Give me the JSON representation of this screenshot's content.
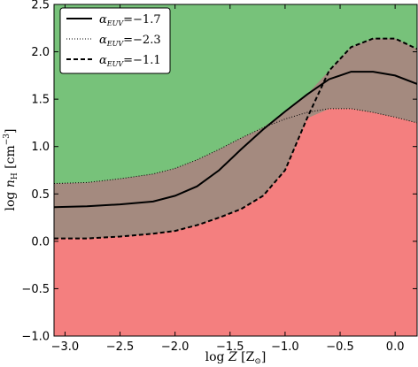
{
  "chart_data": {
    "type": "area",
    "xlabel": "log Z [Z☉]",
    "ylabel": "log nₕ [cm⁻³]",
    "xlim": [
      -3.1,
      0.2
    ],
    "ylim": [
      -1.0,
      2.5
    ],
    "xticks": [
      "−3.0",
      "−2.5",
      "−2.0",
      "−1.5",
      "−1.0",
      "−0.5",
      "0.0"
    ],
    "xtick_values": [
      -3.0,
      -2.5,
      -2.0,
      -1.5,
      -1.0,
      -0.5,
      0.0
    ],
    "yticks": [
      "−1.0",
      "−0.5",
      "0.0",
      "0.5",
      "1.0",
      "1.5",
      "2.0",
      "2.5"
    ],
    "ytick_values": [
      -1.0,
      -0.5,
      0.0,
      0.5,
      1.0,
      1.5,
      2.0,
      2.5
    ],
    "grid": false,
    "legend_position": "top-left",
    "colors": {
      "upper_region": "#77c27a",
      "lower_region": "#f47f7f",
      "overlap_region": "#a48a7f",
      "line": "#000000"
    },
    "x": [
      -3.1,
      -2.8,
      -2.5,
      -2.2,
      -2.0,
      -1.8,
      -1.6,
      -1.4,
      -1.2,
      -1.0,
      -0.8,
      -0.6,
      -0.4,
      -0.2,
      0.0,
      0.2
    ],
    "series": [
      {
        "name": "α_EUV = −1.7",
        "legend_label": "α",
        "legend_sub": "EUV",
        "legend_value": "=−1.7",
        "style": "solid",
        "values": [
          0.36,
          0.37,
          0.39,
          0.42,
          0.48,
          0.58,
          0.75,
          0.97,
          1.18,
          1.37,
          1.55,
          1.71,
          1.79,
          1.79,
          1.75,
          1.66
        ]
      },
      {
        "name": "α_EUV = −2.3",
        "legend_label": "α",
        "legend_sub": "EUV",
        "legend_value": "=−2.3",
        "style": "dotted",
        "values": [
          0.61,
          0.62,
          0.66,
          0.71,
          0.77,
          0.86,
          0.97,
          1.09,
          1.2,
          1.29,
          1.36,
          1.4,
          1.4,
          1.36,
          1.31,
          1.25
        ]
      },
      {
        "name": "α_EUV = −1.1",
        "legend_label": "α",
        "legend_sub": "EUV",
        "legend_value": "=−1.1",
        "style": "dashed",
        "values": [
          0.03,
          0.03,
          0.05,
          0.08,
          0.11,
          0.17,
          0.25,
          0.34,
          0.48,
          0.75,
          1.3,
          1.8,
          2.05,
          2.14,
          2.14,
          2.03
        ]
      }
    ]
  }
}
